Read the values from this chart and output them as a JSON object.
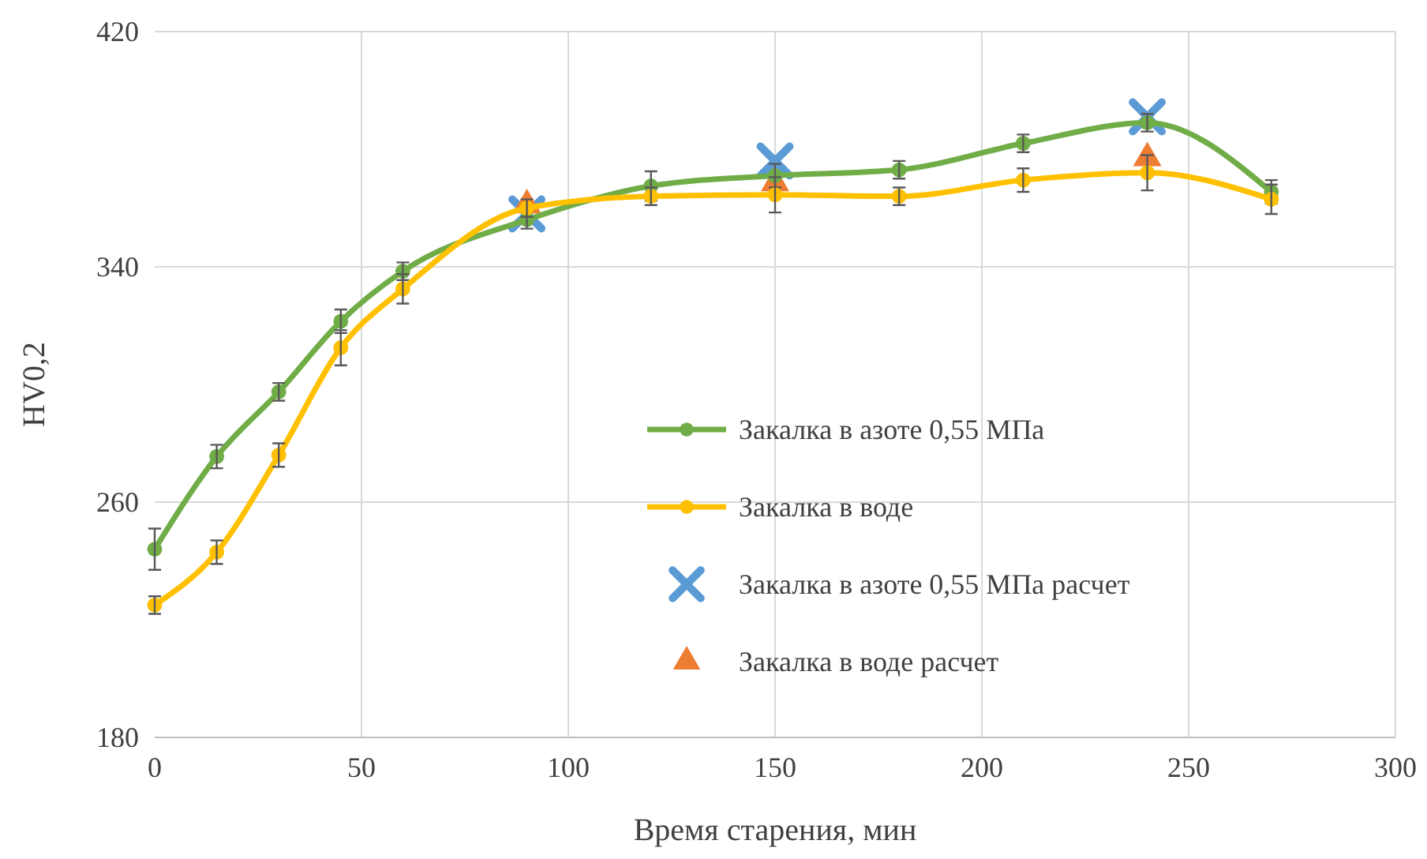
{
  "chart_data": {
    "type": "line",
    "xlabel": "Время старения, мин",
    "ylabel": "HV0,2",
    "xlim": [
      0,
      300
    ],
    "xticks": [
      0,
      50,
      100,
      150,
      200,
      250,
      300
    ],
    "ylim": [
      180,
      420
    ],
    "yticks": [
      180,
      260,
      340,
      420
    ],
    "grid": true,
    "legend": "right",
    "line_style": "solid",
    "x": [
      0,
      15,
      30,
      45,
      60,
      90,
      120,
      150,
      180,
      210,
      240,
      270
    ],
    "series": [
      {
        "name": "Закалка в азоте 0,55 МПа",
        "marker": "circle",
        "color": "#70ad47",
        "values": [
          244,
          275.5,
          297.5,
          321.5,
          338.5,
          356,
          367.5,
          371,
          373,
          382,
          389,
          365.5
        ],
        "errors": [
          7,
          4,
          3,
          4,
          3,
          3,
          5,
          4,
          3,
          3,
          3,
          4
        ]
      },
      {
        "name": "Закалка в воде",
        "marker": "circle",
        "color": "#ffc000",
        "values": [
          225,
          243,
          276,
          312.5,
          332.5,
          360,
          364,
          364.5,
          364,
          369.5,
          372,
          363
        ],
        "errors": [
          3,
          4,
          4,
          6,
          5,
          3,
          3,
          6,
          3,
          4,
          6,
          5
        ]
      },
      {
        "name": "Закалка в азоте 0,55 МПа расчет",
        "type": "scatter",
        "marker": "cross",
        "color": "#5b9bd5",
        "x": [
          90,
          150,
          240
        ],
        "values": [
          358,
          376,
          391
        ]
      },
      {
        "name": "Закалка в воде расчет",
        "type": "scatter",
        "marker": "triangle",
        "color": "#ed7d31",
        "x": [
          90,
          150,
          240
        ],
        "values": [
          361,
          368.5,
          377
        ]
      }
    ]
  }
}
